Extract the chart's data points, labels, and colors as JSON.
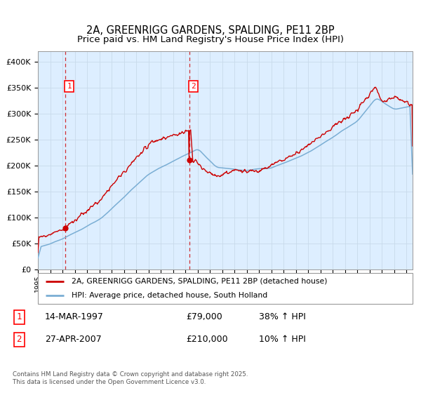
{
  "title": "2A, GREENRIGG GARDENS, SPALDING, PE11 2BP",
  "subtitle": "Price paid vs. HM Land Registry's House Price Index (HPI)",
  "ylim": [
    0,
    420000
  ],
  "yticks": [
    0,
    50000,
    100000,
    150000,
    200000,
    250000,
    300000,
    350000,
    400000
  ],
  "xlim_start": 1995.0,
  "xlim_end": 2025.5,
  "sale1_year": 1997.21,
  "sale1_price": 79000,
  "sale2_year": 2007.32,
  "sale2_price": 210000,
  "hpi_line_color": "#7aaed4",
  "price_line_color": "#cc0000",
  "dashed_line_color": "#cc0000",
  "grid_color": "#c8daea",
  "plot_bg_color": "#ddeeff",
  "legend_label_price": "2A, GREENRIGG GARDENS, SPALDING, PE11 2BP (detached house)",
  "legend_label_hpi": "HPI: Average price, detached house, South Holland",
  "table_row1": [
    "1",
    "14-MAR-1997",
    "£79,000",
    "38% ↑ HPI"
  ],
  "table_row2": [
    "2",
    "27-APR-2007",
    "£210,000",
    "10% ↑ HPI"
  ],
  "footer": "Contains HM Land Registry data © Crown copyright and database right 2025.\nThis data is licensed under the Open Government Licence v3.0.",
  "title_fontsize": 10.5,
  "label_fontsize": 8
}
